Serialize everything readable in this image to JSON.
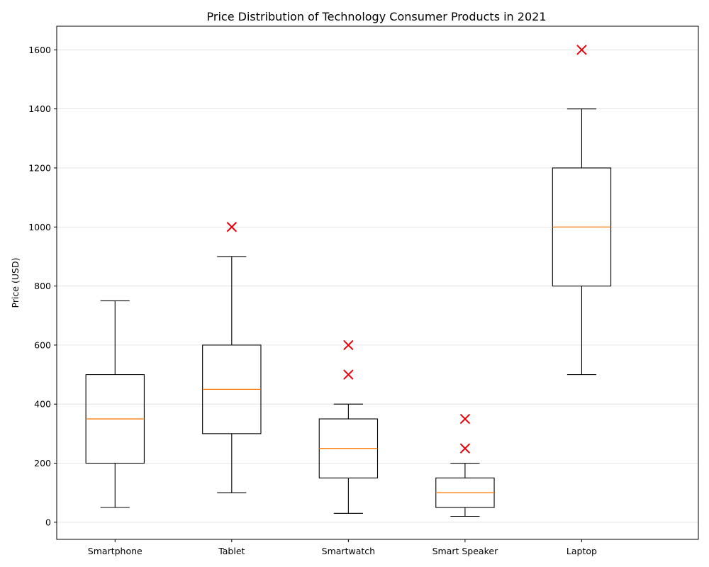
{
  "chart_data": {
    "type": "boxplot",
    "title": "Price Distribution of Technology Consumer Products in 2021",
    "xlabel": "",
    "ylabel": "Price (USD)",
    "ylim": [
      -58,
      1680
    ],
    "yticks": [
      0,
      200,
      400,
      600,
      800,
      1000,
      1200,
      1400,
      1600
    ],
    "grid": "horizontal",
    "colors": {
      "box": "#000000",
      "median": "#ff7f0e",
      "outlier": "#e8000b",
      "grid": "#dddddd"
    },
    "categories": [
      "Smartphone",
      "Tablet",
      "Smartwatch",
      "Smart Speaker",
      "Laptop"
    ],
    "boxes": [
      {
        "min": 50,
        "q1": 200,
        "median": 350,
        "q3": 500,
        "max": 750,
        "outliers": []
      },
      {
        "min": 100,
        "q1": 300,
        "median": 450,
        "q3": 600,
        "max": 900,
        "outliers": [
          1000
        ]
      },
      {
        "min": 30,
        "q1": 150,
        "median": 250,
        "q3": 350,
        "max": 400,
        "outliers": [
          500,
          600
        ]
      },
      {
        "min": 20,
        "q1": 50,
        "median": 100,
        "q3": 150,
        "max": 200,
        "outliers": [
          250,
          350
        ]
      },
      {
        "min": 500,
        "q1": 800,
        "median": 1000,
        "q3": 1200,
        "max": 1400,
        "outliers": [
          1600
        ]
      }
    ]
  }
}
